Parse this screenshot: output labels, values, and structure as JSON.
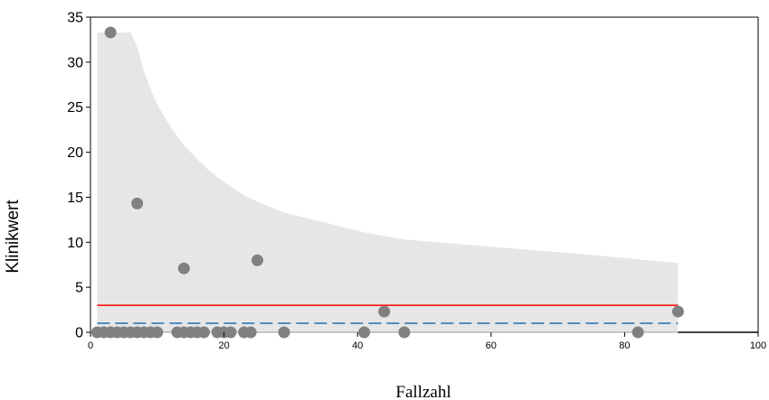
{
  "chart_data": {
    "type": "scatter",
    "xlabel": "Fallzahl",
    "ylabel": "Klinikwert",
    "xlim": [
      0,
      100
    ],
    "ylim": [
      0,
      35
    ],
    "x_ticks": [
      0,
      20,
      40,
      60,
      80,
      100
    ],
    "y_ticks": [
      0,
      5,
      10,
      15,
      20,
      25,
      30,
      35
    ],
    "grid": false,
    "colors": {
      "points": "#808080",
      "band": "#e6e6e6",
      "reference_line": "#ff0000",
      "dashed_line": "#1f6fb4",
      "axis": "#000000"
    },
    "points": [
      {
        "x": 1,
        "y": 0
      },
      {
        "x": 2,
        "y": 0
      },
      {
        "x": 3,
        "y": 0
      },
      {
        "x": 3,
        "y": 33.3
      },
      {
        "x": 4,
        "y": 0
      },
      {
        "x": 5,
        "y": 0
      },
      {
        "x": 6,
        "y": 0
      },
      {
        "x": 7,
        "y": 0
      },
      {
        "x": 7,
        "y": 14.3
      },
      {
        "x": 8,
        "y": 0
      },
      {
        "x": 9,
        "y": 0
      },
      {
        "x": 10,
        "y": 0
      },
      {
        "x": 13,
        "y": 0
      },
      {
        "x": 14,
        "y": 0
      },
      {
        "x": 14,
        "y": 7.1
      },
      {
        "x": 15,
        "y": 0
      },
      {
        "x": 16,
        "y": 0
      },
      {
        "x": 17,
        "y": 0
      },
      {
        "x": 19,
        "y": 0
      },
      {
        "x": 20,
        "y": 0
      },
      {
        "x": 21,
        "y": 0
      },
      {
        "x": 23,
        "y": 0
      },
      {
        "x": 24,
        "y": 0
      },
      {
        "x": 25,
        "y": 8.0
      },
      {
        "x": 29,
        "y": 0
      },
      {
        "x": 41,
        "y": 0
      },
      {
        "x": 44,
        "y": 2.3
      },
      {
        "x": 47,
        "y": 0
      },
      {
        "x": 82,
        "y": 0
      },
      {
        "x": 88,
        "y": 2.3
      }
    ],
    "band": {
      "x": [
        1,
        3,
        5,
        6,
        7,
        8,
        9,
        10,
        12,
        14,
        16,
        18,
        20,
        23,
        25,
        29,
        35,
        41,
        47,
        55,
        65,
        75,
        82,
        88
      ],
      "upper": [
        33.3,
        33.3,
        33.3,
        33.3,
        31.7,
        29.0,
        27.0,
        25.3,
        22.8,
        20.8,
        19.2,
        17.8,
        16.7,
        15.2,
        14.5,
        13.3,
        12.2,
        11.1,
        10.3,
        9.8,
        9.2,
        8.6,
        8.1,
        7.7
      ]
    },
    "reference_line": {
      "y": 3.0,
      "x_start": 1,
      "x_end": 88
    },
    "dashed_line": {
      "y": 1.0,
      "x_start": 1,
      "x_end": 88
    }
  }
}
